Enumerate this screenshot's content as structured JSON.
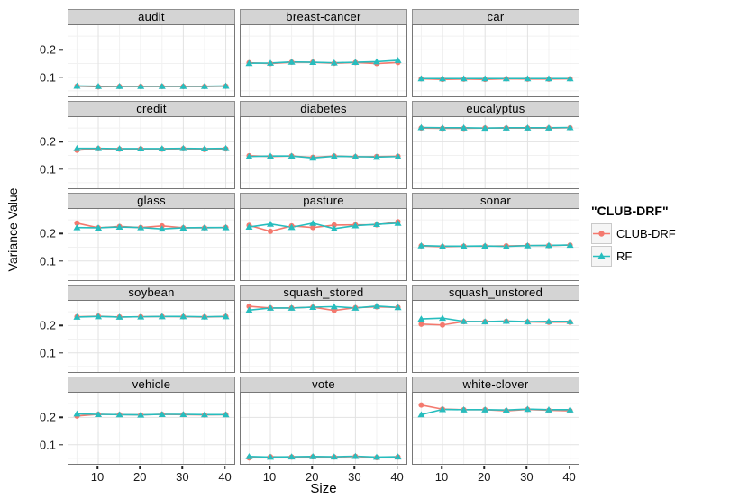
{
  "figure": {
    "y_axis_title": "Variance Value",
    "x_axis_title": "Size",
    "legend": {
      "title": "\"CLUB-DRF\"",
      "items": [
        {
          "label": "CLUB-DRF",
          "color": "#F4796E",
          "marker": "circle"
        },
        {
          "label": "RF",
          "color": "#27BDBE",
          "marker": "triangle"
        }
      ]
    }
  },
  "chart_data": {
    "type": "line",
    "title": "",
    "xlabel": "Size",
    "ylabel": "Variance Value",
    "x": [
      5,
      10,
      15,
      20,
      25,
      30,
      35,
      40
    ],
    "xlim": [
      3,
      42
    ],
    "ylim": [
      0.03,
      0.29
    ],
    "xticks": [
      10,
      20,
      30,
      40
    ],
    "xtick_labels": [
      "10",
      "20",
      "30",
      "40"
    ],
    "xminor": [
      5,
      15,
      25,
      35
    ],
    "yticks": [
      0.1,
      0.2
    ],
    "ytick_labels": [
      "0.1",
      "0.2"
    ],
    "yminor": [
      0.05,
      0.15,
      0.25
    ],
    "grid": true,
    "legend_position": "right",
    "series_styles": [
      {
        "name": "CLUB-DRF",
        "color": "#F4796E",
        "marker": "circle"
      },
      {
        "name": "RF",
        "color": "#27BDBE",
        "marker": "triangle"
      }
    ],
    "facets": [
      {
        "title": "audit",
        "series": [
          {
            "name": "CLUB-DRF",
            "values": [
              0.067,
              0.065,
              0.066,
              0.066,
              0.066,
              0.066,
              0.066,
              0.067
            ]
          },
          {
            "name": "RF",
            "values": [
              0.068,
              0.067,
              0.067,
              0.067,
              0.067,
              0.067,
              0.067,
              0.068
            ]
          }
        ]
      },
      {
        "title": "breast-cancer",
        "series": [
          {
            "name": "CLUB-DRF",
            "values": [
              0.153,
              0.15,
              0.155,
              0.155,
              0.151,
              0.154,
              0.15,
              0.154
            ]
          },
          {
            "name": "RF",
            "values": [
              0.151,
              0.152,
              0.156,
              0.155,
              0.153,
              0.155,
              0.157,
              0.162
            ]
          }
        ]
      },
      {
        "title": "car",
        "series": [
          {
            "name": "CLUB-DRF",
            "values": [
              0.094,
              0.092,
              0.093,
              0.092,
              0.094,
              0.093,
              0.093,
              0.094
            ]
          },
          {
            "name": "RF",
            "values": [
              0.095,
              0.095,
              0.095,
              0.095,
              0.095,
              0.095,
              0.095,
              0.095
            ]
          }
        ]
      },
      {
        "title": "credit",
        "series": [
          {
            "name": "CLUB-DRF",
            "values": [
              0.169,
              0.175,
              0.173,
              0.174,
              0.173,
              0.175,
              0.172,
              0.174
            ]
          },
          {
            "name": "RF",
            "values": [
              0.176,
              0.176,
              0.175,
              0.175,
              0.175,
              0.176,
              0.175,
              0.176
            ]
          }
        ]
      },
      {
        "title": "diabetes",
        "series": [
          {
            "name": "CLUB-DRF",
            "values": [
              0.149,
              0.146,
              0.148,
              0.143,
              0.148,
              0.145,
              0.146,
              0.147
            ]
          },
          {
            "name": "RF",
            "values": [
              0.146,
              0.148,
              0.148,
              0.141,
              0.147,
              0.146,
              0.144,
              0.146
            ]
          }
        ]
      },
      {
        "title": "eucalyptus",
        "series": [
          {
            "name": "CLUB-DRF",
            "values": [
              0.25,
              0.249,
              0.249,
              0.25,
              0.25,
              0.25,
              0.25,
              0.251
            ]
          },
          {
            "name": "RF",
            "values": [
              0.252,
              0.251,
              0.251,
              0.25,
              0.251,
              0.251,
              0.251,
              0.252
            ]
          }
        ]
      },
      {
        "title": "glass",
        "series": [
          {
            "name": "CLUB-DRF",
            "values": [
              0.238,
              0.221,
              0.226,
              0.222,
              0.228,
              0.221,
              0.221,
              0.222
            ]
          },
          {
            "name": "RF",
            "values": [
              0.222,
              0.221,
              0.224,
              0.222,
              0.217,
              0.221,
              0.222,
              0.222
            ]
          }
        ]
      },
      {
        "title": "pasture",
        "series": [
          {
            "name": "CLUB-DRF",
            "values": [
              0.23,
              0.208,
              0.228,
              0.222,
              0.231,
              0.232,
              0.232,
              0.243
            ]
          },
          {
            "name": "RF",
            "values": [
              0.224,
              0.235,
              0.223,
              0.238,
              0.218,
              0.229,
              0.234,
              0.238
            ]
          }
        ]
      },
      {
        "title": "sonar",
        "series": [
          {
            "name": "CLUB-DRF",
            "values": [
              0.155,
              0.152,
              0.154,
              0.154,
              0.155,
              0.156,
              0.156,
              0.158
            ]
          },
          {
            "name": "RF",
            "values": [
              0.156,
              0.154,
              0.154,
              0.155,
              0.153,
              0.156,
              0.157,
              0.158
            ]
          }
        ]
      },
      {
        "title": "soybean",
        "series": [
          {
            "name": "CLUB-DRF",
            "values": [
              0.232,
              0.234,
              0.231,
              0.232,
              0.233,
              0.232,
              0.231,
              0.233
            ]
          },
          {
            "name": "RF",
            "values": [
              0.231,
              0.233,
              0.231,
              0.232,
              0.233,
              0.233,
              0.232,
              0.233
            ]
          }
        ]
      },
      {
        "title": "squash_stored",
        "series": [
          {
            "name": "CLUB-DRF",
            "values": [
              0.27,
              0.264,
              0.264,
              0.267,
              0.255,
              0.265,
              0.268,
              0.266
            ]
          },
          {
            "name": "RF",
            "values": [
              0.256,
              0.264,
              0.264,
              0.267,
              0.269,
              0.264,
              0.271,
              0.266
            ]
          }
        ]
      },
      {
        "title": "squash_unstored",
        "series": [
          {
            "name": "CLUB-DRF",
            "values": [
              0.205,
              0.202,
              0.214,
              0.214,
              0.215,
              0.213,
              0.212,
              0.212
            ]
          },
          {
            "name": "RF",
            "values": [
              0.224,
              0.227,
              0.215,
              0.214,
              0.216,
              0.214,
              0.215,
              0.215
            ]
          }
        ]
      },
      {
        "title": "vehicle",
        "series": [
          {
            "name": "CLUB-DRF",
            "values": [
              0.205,
              0.211,
              0.21,
              0.209,
              0.211,
              0.21,
              0.209,
              0.21
            ]
          },
          {
            "name": "RF",
            "values": [
              0.213,
              0.211,
              0.21,
              0.209,
              0.211,
              0.211,
              0.21,
              0.21
            ]
          }
        ]
      },
      {
        "title": "vote",
        "series": [
          {
            "name": "CLUB-DRF",
            "values": [
              0.052,
              0.056,
              0.055,
              0.056,
              0.055,
              0.057,
              0.053,
              0.055
            ]
          },
          {
            "name": "RF",
            "values": [
              0.057,
              0.055,
              0.056,
              0.057,
              0.056,
              0.058,
              0.055,
              0.056
            ]
          }
        ]
      },
      {
        "title": "white-clover",
        "series": [
          {
            "name": "CLUB-DRF",
            "values": [
              0.245,
              0.23,
              0.228,
              0.228,
              0.224,
              0.229,
              0.226,
              0.224
            ]
          },
          {
            "name": "RF",
            "values": [
              0.21,
              0.229,
              0.228,
              0.228,
              0.227,
              0.23,
              0.228,
              0.228
            ]
          }
        ]
      }
    ]
  }
}
